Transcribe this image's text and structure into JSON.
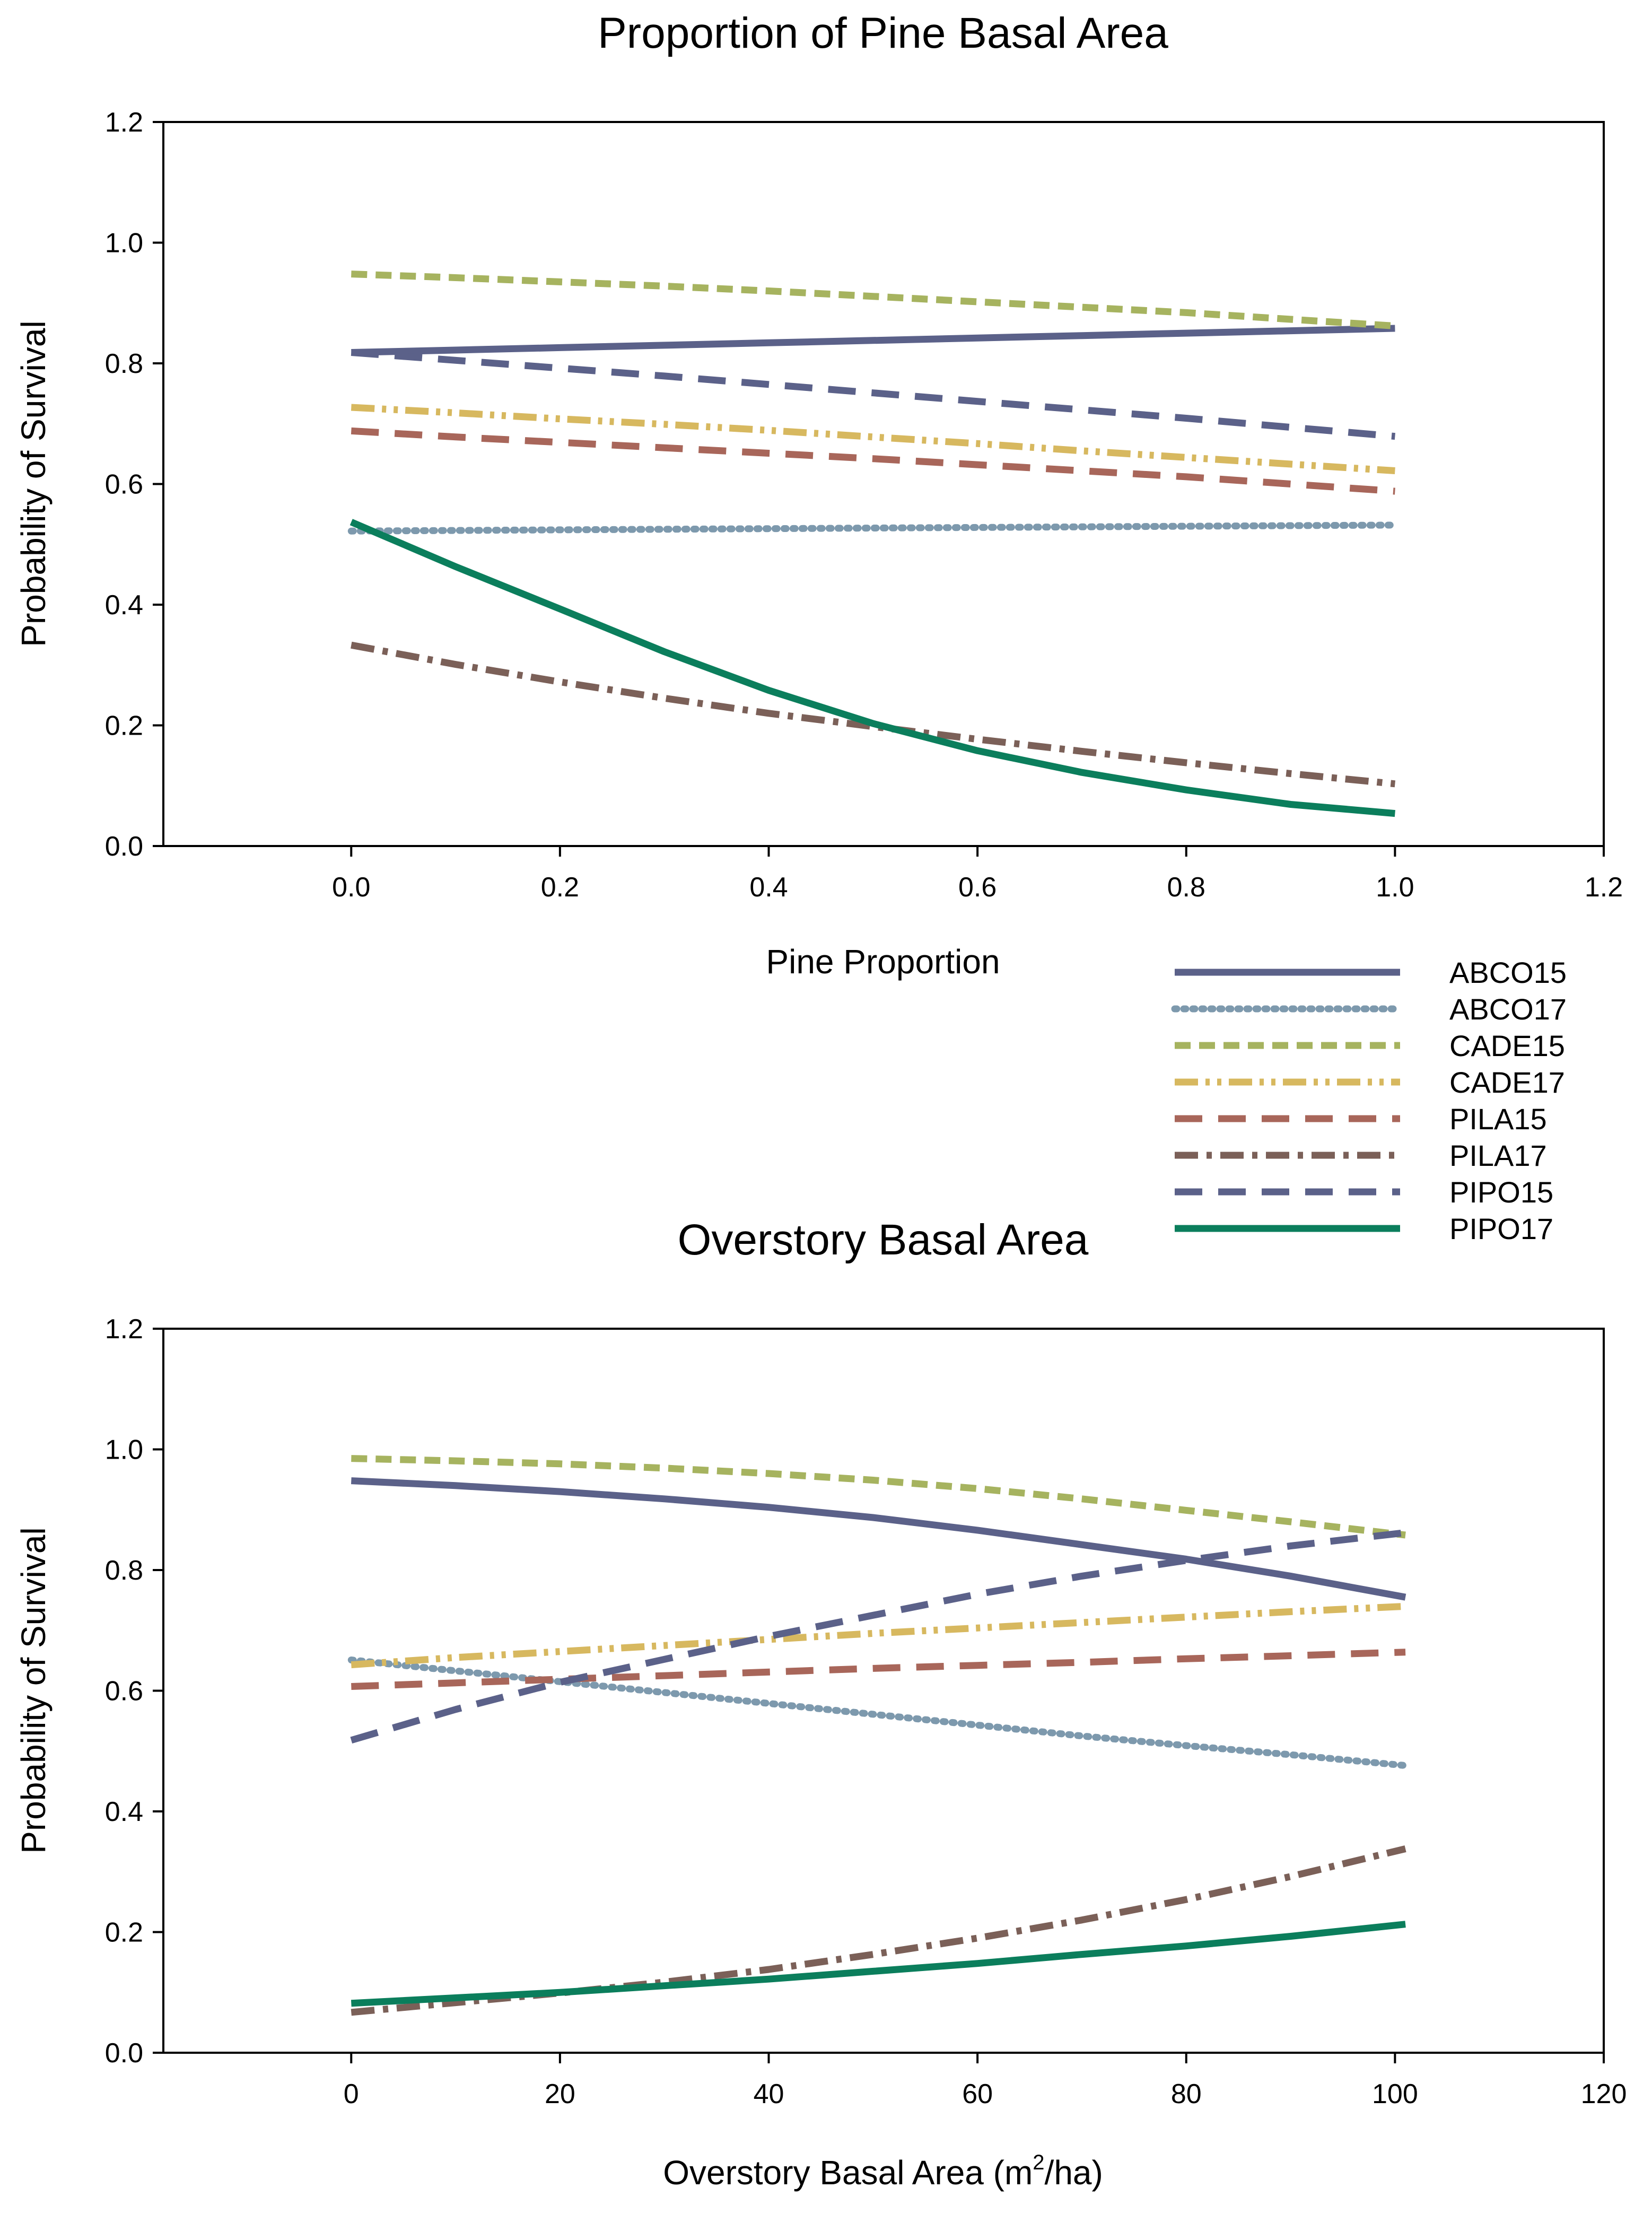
{
  "chart_data": [
    {
      "type": "line",
      "title": "Proportion of Pine Basal Area",
      "xlabel": "Pine Proportion",
      "ylabel": "Probability of Survival",
      "xlim": [
        -0.18,
        1.2
      ],
      "ylim": [
        0,
        1.2
      ],
      "xticks": [
        0.0,
        0.2,
        0.4,
        0.6,
        0.8,
        1.0,
        1.2
      ],
      "xtick_labels": [
        "0.0",
        "0.2",
        "0.4",
        "0.6",
        "0.8",
        "1.0",
        "1.2"
      ],
      "yticks": [
        0.0,
        0.2,
        0.4,
        0.6,
        0.8,
        1.0,
        1.2
      ],
      "ytick_labels": [
        "0.0",
        "0.2",
        "0.4",
        "0.6",
        "0.8",
        "1.0",
        "1.2"
      ],
      "grid": false,
      "x": [
        0.0,
        0.1,
        0.2,
        0.3,
        0.4,
        0.5,
        0.6,
        0.7,
        0.8,
        0.9,
        1.0
      ],
      "series": [
        {
          "name": "ABCO15",
          "values": [
            0.818,
            0.822,
            0.826,
            0.83,
            0.834,
            0.838,
            0.842,
            0.846,
            0.85,
            0.854,
            0.858
          ]
        },
        {
          "name": "ABCO17",
          "values": [
            0.522,
            0.523,
            0.524,
            0.525,
            0.526,
            0.527,
            0.528,
            0.529,
            0.53,
            0.531,
            0.532
          ]
        },
        {
          "name": "CADE15",
          "values": [
            0.948,
            0.942,
            0.935,
            0.928,
            0.92,
            0.911,
            0.902,
            0.893,
            0.884,
            0.873,
            0.862
          ]
        },
        {
          "name": "CADE17",
          "values": [
            0.727,
            0.718,
            0.708,
            0.699,
            0.689,
            0.678,
            0.667,
            0.655,
            0.644,
            0.633,
            0.622
          ]
        },
        {
          "name": "PILA15",
          "values": [
            0.688,
            0.678,
            0.669,
            0.66,
            0.651,
            0.642,
            0.632,
            0.622,
            0.612,
            0.6,
            0.588
          ]
        },
        {
          "name": "PILA17",
          "values": [
            0.333,
            0.301,
            0.272,
            0.245,
            0.22,
            0.198,
            0.177,
            0.157,
            0.138,
            0.12,
            0.103
          ]
        },
        {
          "name": "PIPO15",
          "values": [
            0.818,
            0.805,
            0.792,
            0.779,
            0.765,
            0.751,
            0.737,
            0.723,
            0.709,
            0.694,
            0.679
          ]
        },
        {
          "name": "PIPO17",
          "values": [
            0.537,
            0.463,
            0.393,
            0.322,
            0.258,
            0.203,
            0.158,
            0.122,
            0.093,
            0.069,
            0.054
          ]
        }
      ]
    },
    {
      "type": "line",
      "title": "Overstory Basal Area",
      "xlabel": "Overstory Basal Area (m",
      "xlabel_sup": "2",
      "xlabel_end": "/ha)",
      "ylabel": "Probability of Survival",
      "xlim": [
        -18,
        120
      ],
      "ylim": [
        0,
        1.2
      ],
      "xticks": [
        0,
        20,
        40,
        60,
        80,
        100,
        120
      ],
      "xtick_labels": [
        "0",
        "20",
        "40",
        "60",
        "80",
        "100",
        "120"
      ],
      "yticks": [
        0.0,
        0.2,
        0.4,
        0.6,
        0.8,
        1.0,
        1.2
      ],
      "ytick_labels": [
        "0.0",
        "0.2",
        "0.4",
        "0.6",
        "0.8",
        "1.0",
        "1.2"
      ],
      "grid": false,
      "x": [
        0,
        10,
        20,
        30,
        40,
        50,
        60,
        70,
        80,
        90,
        101
      ],
      "series": [
        {
          "name": "ABCO15",
          "values": [
            0.948,
            0.94,
            0.93,
            0.918,
            0.904,
            0.887,
            0.866,
            0.842,
            0.818,
            0.79,
            0.755
          ]
        },
        {
          "name": "ABCO17",
          "values": [
            0.651,
            0.633,
            0.615,
            0.597,
            0.579,
            0.561,
            0.543,
            0.525,
            0.509,
            0.494,
            0.476
          ]
        },
        {
          "name": "CADE15",
          "values": [
            0.985,
            0.981,
            0.976,
            0.969,
            0.96,
            0.949,
            0.935,
            0.918,
            0.899,
            0.88,
            0.858
          ]
        },
        {
          "name": "CADE17",
          "values": [
            0.643,
            0.655,
            0.665,
            0.675,
            0.685,
            0.695,
            0.704,
            0.713,
            0.722,
            0.731,
            0.74
          ]
        },
        {
          "name": "PILA15",
          "values": [
            0.607,
            0.613,
            0.619,
            0.625,
            0.631,
            0.637,
            0.642,
            0.647,
            0.653,
            0.658,
            0.664
          ]
        },
        {
          "name": "PILA17",
          "values": [
            0.067,
            0.083,
            0.099,
            0.117,
            0.138,
            0.163,
            0.19,
            0.22,
            0.254,
            0.292,
            0.338
          ]
        },
        {
          "name": "PIPO15",
          "values": [
            0.518,
            0.569,
            0.614,
            0.652,
            0.69,
            0.725,
            0.76,
            0.79,
            0.816,
            0.84,
            0.862
          ]
        },
        {
          "name": "PIPO17",
          "values": [
            0.082,
            0.091,
            0.1,
            0.111,
            0.122,
            0.135,
            0.148,
            0.163,
            0.177,
            0.193,
            0.213
          ]
        }
      ]
    }
  ],
  "legend": {
    "placement": "between panels, right",
    "entries": [
      {
        "name": "ABCO15",
        "color": "#5b6189",
        "style": "solid"
      },
      {
        "name": "ABCO17",
        "color": "#7d99ad",
        "style": "dotted"
      },
      {
        "name": "CADE15",
        "color": "#a6b35f",
        "style": "dashed"
      },
      {
        "name": "CADE17",
        "color": "#d7b85f",
        "style": "dash-dot-dot"
      },
      {
        "name": "PILA15",
        "color": "#a8665a",
        "style": "long-dash"
      },
      {
        "name": "PILA17",
        "color": "#7b6058",
        "style": "dash-dot"
      },
      {
        "name": "PIPO15",
        "color": "#5b6189",
        "style": "long-dash"
      },
      {
        "name": "PIPO17",
        "color": "#0b7e5c",
        "style": "solid"
      }
    ]
  }
}
